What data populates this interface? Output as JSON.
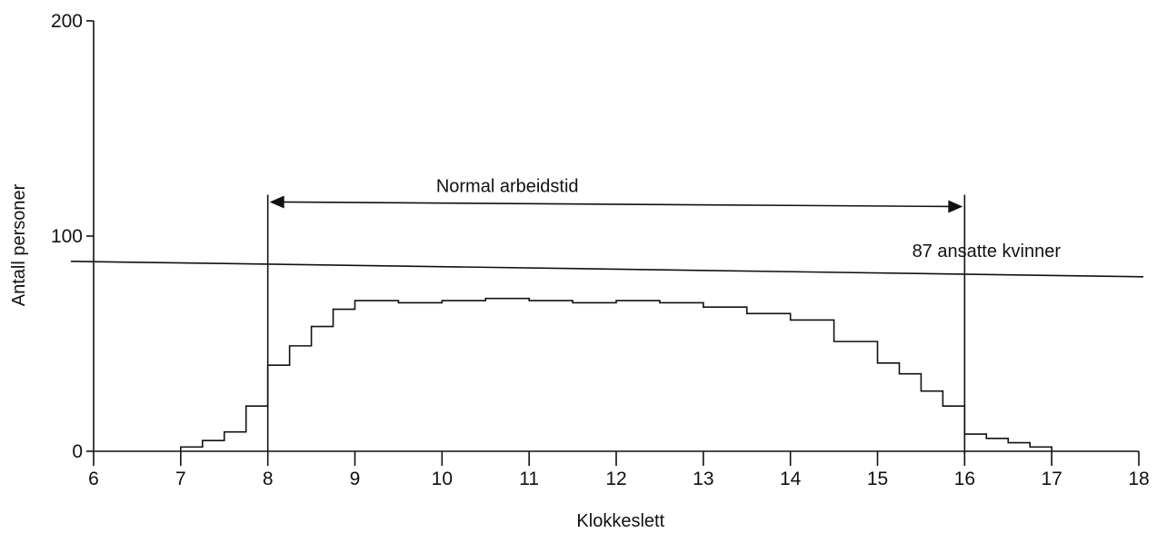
{
  "chart_data": {
    "type": "area",
    "xlabel": "Klokkeslett",
    "ylabel": "Antall personer",
    "xlim": [
      6,
      18
    ],
    "ylim": [
      0,
      200
    ],
    "x_ticks": [
      6,
      7,
      8,
      9,
      10,
      11,
      12,
      13,
      14,
      15,
      16,
      17,
      18
    ],
    "y_ticks": [
      0,
      100,
      200
    ],
    "grid": false,
    "series": [
      {
        "style": "step",
        "x_start": [
          7.0,
          7.25,
          7.5,
          7.75,
          8.0,
          8.25,
          8.5,
          8.75,
          9.0,
          9.5,
          10.0,
          10.5,
          11.0,
          11.5,
          12.0,
          12.5,
          13.0,
          13.5,
          14.0,
          14.5,
          15.0,
          15.25,
          15.5,
          15.75,
          16.0,
          16.25,
          16.5,
          16.75
        ],
        "x_end": [
          7.25,
          7.5,
          7.75,
          8.0,
          8.25,
          8.5,
          8.75,
          9.0,
          9.5,
          10.0,
          10.5,
          11.0,
          11.5,
          12.0,
          12.5,
          13.0,
          13.5,
          14.0,
          14.5,
          15.0,
          15.25,
          15.5,
          15.75,
          16.0,
          16.25,
          16.5,
          16.75,
          17.0
        ],
        "values": [
          2,
          5,
          9,
          21,
          40,
          49,
          58,
          66,
          70,
          69,
          70,
          71,
          70,
          69,
          70,
          69,
          67,
          64,
          61,
          51,
          41,
          36,
          28,
          21,
          8,
          6,
          4,
          2
        ]
      }
    ],
    "reference_line": {
      "value": 87,
      "label": "87 ansatte kvinner"
    },
    "annotations": [
      {
        "text": "Normal arbeidstid",
        "x_from": 8,
        "x_to": 16,
        "y": 115
      }
    ]
  }
}
